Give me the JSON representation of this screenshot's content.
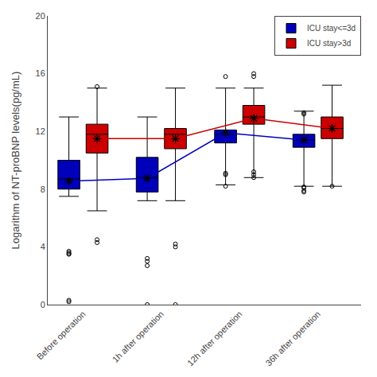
{
  "chart_data": {
    "type": "box",
    "ylabel": "Logarithm of NT-proBNP levels(pg/mL)",
    "categories": [
      "Before operation",
      "1h after operation",
      "12h after operation",
      "36h after operation"
    ],
    "ylim": [
      0,
      20
    ],
    "yticks": [
      0,
      4,
      8,
      12,
      16,
      20
    ],
    "grid": false,
    "legend": "upper right",
    "series": [
      {
        "name": "ICU stay<=3d",
        "color": "#0000BB",
        "boxes": [
          {
            "q1": 8.0,
            "median": 8.7,
            "q3": 10.0,
            "lower_whisker": 7.5,
            "upper_whisker": 13.0,
            "mean": 8.55,
            "fliers": [
              3.7,
              3.6,
              3.5,
              3.5,
              0.3,
              0.2
            ]
          },
          {
            "q1": 7.8,
            "median": 8.8,
            "q3": 10.2,
            "lower_whisker": 7.2,
            "upper_whisker": 13.0,
            "mean": 8.75,
            "fliers": [
              3.2,
              3.0,
              2.7,
              0.0
            ]
          },
          {
            "q1": 11.2,
            "median": 11.8,
            "q3": 12.1,
            "lower_whisker": 8.3,
            "upper_whisker": 15.0,
            "mean": 11.9,
            "fliers": [
              8.2,
              9.0,
              9.1,
              15.8
            ]
          },
          {
            "q1": 10.9,
            "median": 11.4,
            "q3": 11.8,
            "lower_whisker": 8.2,
            "upper_whisker": 13.4,
            "mean": 11.4,
            "fliers": [
              8.15,
              8.1,
              7.9,
              7.8,
              13.2,
              13.3
            ]
          }
        ]
      },
      {
        "name": "ICU stay>3d",
        "color": "#CC0000",
        "boxes": [
          {
            "q1": 10.5,
            "median": 11.8,
            "q3": 12.5,
            "lower_whisker": 6.5,
            "upper_whisker": 15.0,
            "mean": 11.5,
            "fliers": [
              4.5,
              4.3,
              15.1
            ]
          },
          {
            "q1": 10.8,
            "median": 11.8,
            "q3": 12.2,
            "lower_whisker": 7.2,
            "upper_whisker": 15.0,
            "mean": 11.5,
            "fliers": [
              4.2,
              4.0,
              0.0
            ]
          },
          {
            "q1": 12.5,
            "median": 13.0,
            "q3": 13.8,
            "lower_whisker": 8.8,
            "upper_whisker": 15.0,
            "mean": 12.9,
            "fliers": [
              8.8,
              9.0,
              9.2,
              15.8,
              16.0
            ]
          },
          {
            "q1": 11.5,
            "median": 12.2,
            "q3": 13.0,
            "lower_whisker": 8.2,
            "upper_whisker": 15.2,
            "mean": 12.2,
            "fliers": [
              8.2
            ]
          }
        ]
      }
    ]
  }
}
